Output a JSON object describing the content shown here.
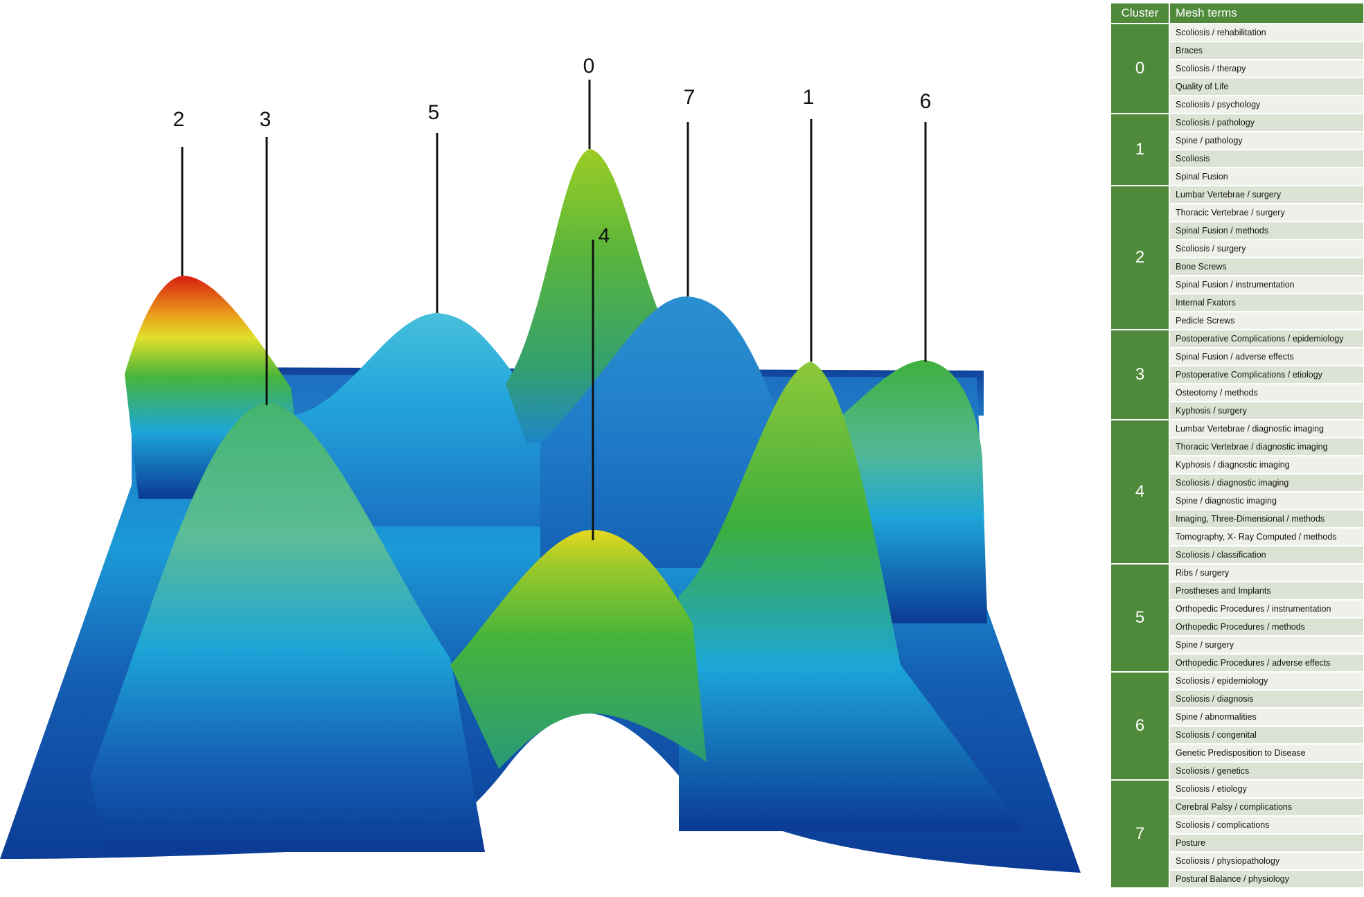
{
  "landscape": {
    "peak_labels": [
      "2",
      "3",
      "5",
      "0",
      "7",
      "1",
      "6",
      "4"
    ],
    "colormap": [
      "#0b3a94",
      "#1da5d8",
      "#3dbc3c",
      "#e6d81e",
      "#d81c10"
    ]
  },
  "table": {
    "header": {
      "cluster": "Cluster",
      "terms": "Mesh terms"
    },
    "header_color": "#4e8a3a",
    "clusters": [
      {
        "id": "0",
        "terms": [
          "Scoliosis / rehabilitation",
          "Braces",
          "Scoliosis / therapy",
          "Quality of Life",
          "Scoliosis / psychology"
        ]
      },
      {
        "id": "1",
        "terms": [
          "Scoliosis / pathology",
          "Spine / pathology",
          "Scoliosis",
          "Spinal Fusion"
        ]
      },
      {
        "id": "2",
        "terms": [
          "Lumbar Vertebrae / surgery",
          "Thoracic Vertebrae / surgery",
          "Spinal Fusion / methods",
          "Scoliosis / surgery",
          "Bone Screws",
          "Spinal Fusion / instrumentation",
          "Internal Fxators",
          "Pedicle Screws"
        ]
      },
      {
        "id": "3",
        "terms": [
          "Postoperative Complications / epidemiology",
          "Spinal Fusion / adverse effects",
          "Postoperative Complications / etiology",
          "Osteotomy / methods",
          "Kyphosis / surgery"
        ]
      },
      {
        "id": "4",
        "terms": [
          "Lumbar Vertebrae / diagnostic imaging",
          "Thoracic Vertebrae / diagnostic imaging",
          "Kyphosis / diagnostic imaging",
          "Scoliosis / diagnostic imaging",
          "Spine / diagnostic imaging",
          "Imaging, Three-Dimensional / methods",
          "Tomography, X- Ray Computed / methods",
          "Scoliosis / classification"
        ]
      },
      {
        "id": "5",
        "terms": [
          "Ribs / surgery",
          "Prostheses and Implants",
          "Orthopedic Procedures / instrumentation",
          "Orthopedic Procedures / methods",
          "Spine / surgery",
          "Orthopedic Procedures / adverse effects"
        ]
      },
      {
        "id": "6",
        "terms": [
          "Scoliosis / epidemiology",
          "Scoliosis / diagnosis",
          "Spine / abnormalities",
          "Scoliosis / congenital",
          "Genetic Predisposition to Disease",
          "Scoliosis / genetics"
        ]
      },
      {
        "id": "7",
        "terms": [
          "Scoliosis / etiology",
          "Cerebral Palsy / complications",
          "Scoliosis / complications",
          "Posture",
          "Scoliosis / physiopathology",
          "Postural Balance / physiology"
        ]
      }
    ]
  }
}
